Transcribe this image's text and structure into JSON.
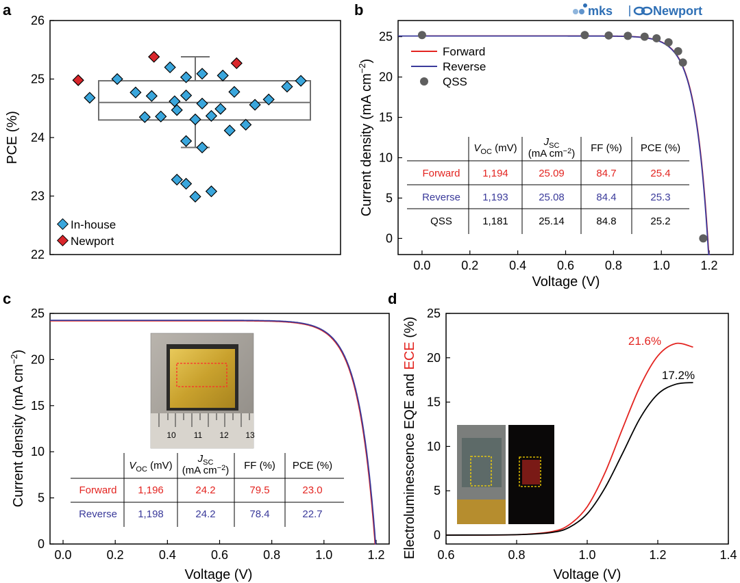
{
  "brand": {
    "mks": "mks",
    "newport": "Newport"
  },
  "colors": {
    "forward": "#e32420",
    "reverse": "#3a3a9a",
    "qss": "#5f5f5f",
    "inhouse": "#3aa6dc",
    "newport": "#d9262b",
    "eqe": "#000000",
    "ece": "#e32420"
  },
  "chart_data": [
    {
      "panel": "a",
      "type": "scatter",
      "title": "",
      "xlabel": "",
      "ylabel": "PCE (%)",
      "ylim": [
        22,
        26
      ],
      "yticks": [
        22,
        23,
        24,
        25,
        26
      ],
      "legend_placement": "bottom-left",
      "box": {
        "q1": 24.3,
        "median": 24.6,
        "q3": 24.97,
        "whisker_low": 23.83,
        "whisker_high": 25.38
      },
      "series": [
        {
          "name": "In-house",
          "points": [
            [
              -2.3,
              24.68
            ],
            [
              -1.7,
              25.0
            ],
            [
              -1.3,
              24.77
            ],
            [
              -1.1,
              24.35
            ],
            [
              -0.95,
              24.71
            ],
            [
              -0.75,
              24.36
            ],
            [
              -0.55,
              25.2
            ],
            [
              -0.45,
              24.62
            ],
            [
              -0.4,
              24.47
            ],
            [
              -0.2,
              25.03
            ],
            [
              -0.2,
              24.72
            ],
            [
              -0.2,
              23.94
            ],
            [
              0.0,
              24.31
            ],
            [
              0.15,
              25.09
            ],
            [
              0.15,
              24.58
            ],
            [
              0.15,
              23.83
            ],
            [
              0.35,
              24.37
            ],
            [
              0.6,
              25.06
            ],
            [
              0.55,
              24.49
            ],
            [
              0.85,
              24.78
            ],
            [
              0.75,
              24.12
            ],
            [
              1.1,
              24.22
            ],
            [
              1.3,
              24.56
            ],
            [
              1.6,
              24.65
            ],
            [
              2.0,
              24.87
            ],
            [
              2.3,
              24.97
            ],
            [
              -0.4,
              23.28
            ],
            [
              -0.2,
              23.21
            ],
            [
              0.0,
              22.99
            ],
            [
              0.35,
              23.08
            ]
          ]
        },
        {
          "name": "Newport",
          "points": [
            [
              -2.55,
              24.98
            ],
            [
              -0.9,
              25.38
            ],
            [
              0.9,
              25.27
            ]
          ]
        }
      ]
    },
    {
      "panel": "b",
      "type": "line",
      "title": "",
      "xlabel": "Voltage (V)",
      "ylabel": "Current density (mA cm⁻²)",
      "xlim": [
        -0.1,
        1.3
      ],
      "ylim": [
        -2,
        27
      ],
      "xticks": [
        0.0,
        0.2,
        0.4,
        0.6,
        0.8,
        1.0,
        1.2
      ],
      "yticks": [
        0,
        5,
        10,
        15,
        20,
        25
      ],
      "legend_placement": "top-left",
      "series": [
        {
          "name": "Forward",
          "model": {
            "jsc": 25.09,
            "voc": 1.194,
            "n": 0.055
          }
        },
        {
          "name": "Reverse",
          "model": {
            "jsc": 25.08,
            "voc": 1.193,
            "n": 0.055
          }
        },
        {
          "name": "QSS",
          "points": [
            [
              0.0,
              25.2
            ],
            [
              0.68,
              25.2
            ],
            [
              0.78,
              25.15
            ],
            [
              0.86,
              25.1
            ],
            [
              0.93,
              25.0
            ],
            [
              0.98,
              24.8
            ],
            [
              1.03,
              24.3
            ],
            [
              1.07,
              23.2
            ],
            [
              1.09,
              21.8
            ],
            [
              1.175,
              0.0
            ]
          ]
        }
      ],
      "table": {
        "headers": [
          "V_OC (mV)",
          "J_SC (mA cm⁻²)",
          "FF (%)",
          "PCE (%)"
        ],
        "rows": [
          {
            "label": "Forward",
            "values": [
              "1,194",
              "25.09",
              "84.7",
              "25.4"
            ]
          },
          {
            "label": "Reverse",
            "values": [
              "1,193",
              "25.08",
              "84.4",
              "25.3"
            ]
          },
          {
            "label": "QSS",
            "values": [
              "1,181",
              "25.14",
              "84.8",
              "25.2"
            ]
          }
        ]
      }
    },
    {
      "panel": "c",
      "type": "line",
      "title": "",
      "xlabel": "Voltage (V)",
      "ylabel": "Current density (mA cm⁻²)",
      "xlim": [
        -0.05,
        1.25
      ],
      "ylim": [
        0,
        25
      ],
      "xticks": [
        0.0,
        0.2,
        0.4,
        0.6,
        0.8,
        1.0,
        1.2
      ],
      "yticks": [
        0,
        5,
        10,
        15,
        20,
        25
      ],
      "series": [
        {
          "name": "Forward",
          "model": {
            "jsc": 24.2,
            "voc": 1.196,
            "n": 0.065
          }
        },
        {
          "name": "Reverse",
          "model": {
            "jsc": 24.25,
            "voc": 1.198,
            "n": 0.065
          }
        }
      ],
      "table": {
        "headers": [
          "V_OC (mV)",
          "J_SC (mA cm⁻²)",
          "FF (%)",
          "PCE (%)"
        ],
        "rows": [
          {
            "label": "Forward",
            "values": [
              "1,196",
              "24.2",
              "79.5",
              "23.0"
            ]
          },
          {
            "label": "Reverse",
            "values": [
              "1,198",
              "24.2",
              "78.4",
              "22.7"
            ]
          }
        ]
      },
      "inset_ruler_labels": [
        "10",
        "11",
        "12",
        "13"
      ]
    },
    {
      "panel": "d",
      "type": "line",
      "title": "",
      "xlabel": "Voltage (V)",
      "ylabel": "Electroluminescence EQE and ECE (%)",
      "ylabel_parts": [
        "Electroluminescence EQE and ",
        "ECE",
        " (%)"
      ],
      "xlim": [
        0.6,
        1.4
      ],
      "ylim": [
        -1,
        25
      ],
      "xticks": [
        0.6,
        0.8,
        1.0,
        1.2,
        1.4
      ],
      "yticks": [
        0,
        5,
        10,
        15,
        20,
        25
      ],
      "series": [
        {
          "name": "ECE",
          "color": "red",
          "points": [
            [
              0.6,
              0
            ],
            [
              0.8,
              0.05
            ],
            [
              0.9,
              0.4
            ],
            [
              0.95,
              1.2
            ],
            [
              1.0,
              3.2
            ],
            [
              1.05,
              7.0
            ],
            [
              1.1,
              12.0
            ],
            [
              1.15,
              16.8
            ],
            [
              1.2,
              20.2
            ],
            [
              1.25,
              21.6
            ],
            [
              1.3,
              21.2
            ]
          ]
        },
        {
          "name": "EQE",
          "color": "black",
          "points": [
            [
              0.6,
              0
            ],
            [
              0.8,
              0.05
            ],
            [
              0.9,
              0.3
            ],
            [
              0.95,
              0.9
            ],
            [
              1.0,
              2.4
            ],
            [
              1.05,
              5.3
            ],
            [
              1.1,
              9.2
            ],
            [
              1.15,
              13.2
            ],
            [
              1.2,
              15.9
            ],
            [
              1.25,
              17.0
            ],
            [
              1.3,
              17.2
            ]
          ]
        }
      ],
      "annotations": [
        "21.6%",
        "17.2%"
      ]
    }
  ]
}
